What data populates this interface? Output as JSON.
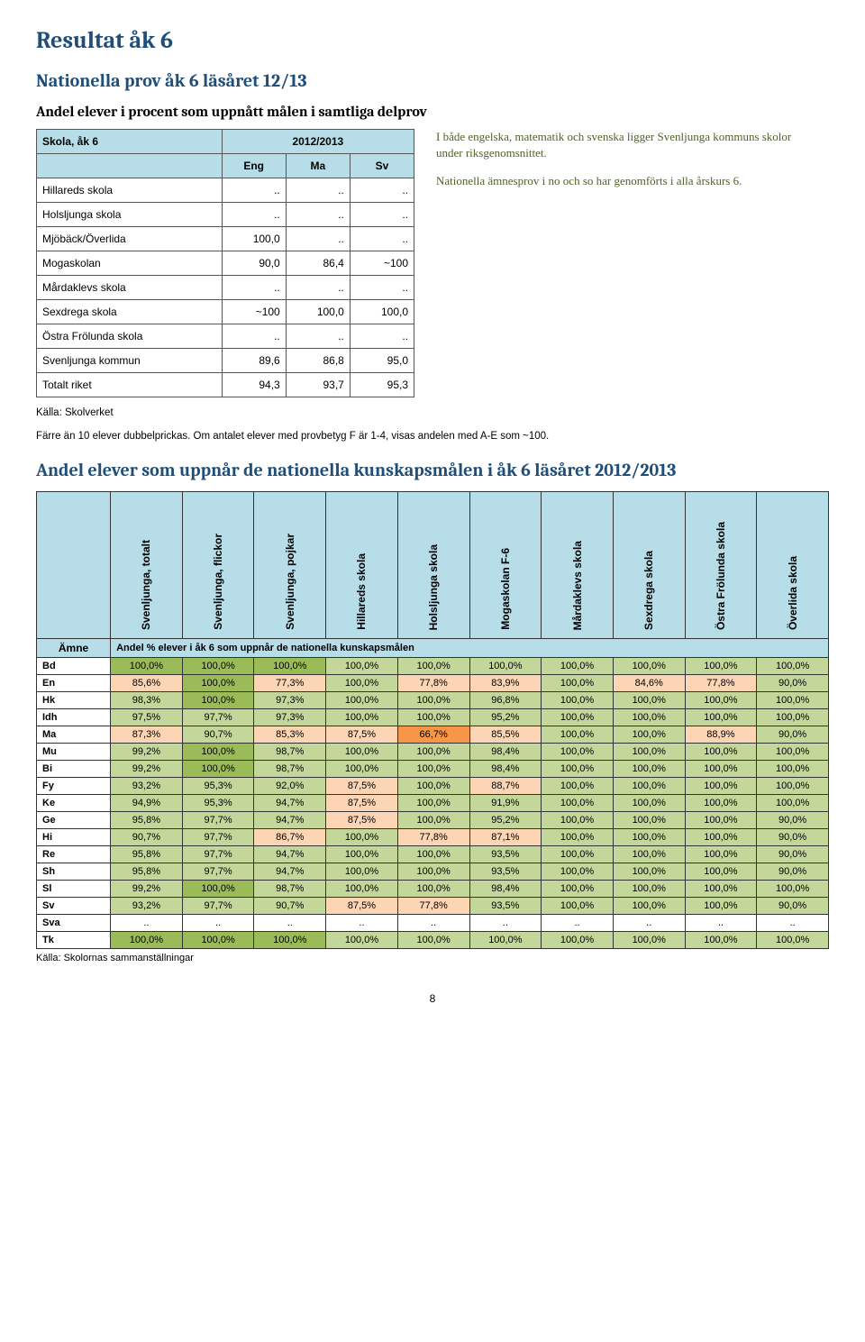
{
  "page_title": "Resultat åk 6",
  "section1_title": "Nationella prov åk 6 läsåret 12/13",
  "section1_subtitle": "Andel elever i procent som uppnått målen i samtliga delprov",
  "table1": {
    "header_left": "Skola, åk 6",
    "header_right": "2012/2013",
    "cols": [
      "Eng",
      "Ma",
      "Sv"
    ],
    "rows": [
      {
        "label": "Hillareds skola",
        "vals": [
          "..",
          "..",
          ".."
        ]
      },
      {
        "label": "Holsljunga skola",
        "vals": [
          "..",
          "..",
          ".."
        ]
      },
      {
        "label": "Mjöbäck/Överlida",
        "vals": [
          "100,0",
          "..",
          ".."
        ]
      },
      {
        "label": "Mogaskolan",
        "vals": [
          "90,0",
          "86,4",
          "~100"
        ]
      },
      {
        "label": "Mårdaklevs skola",
        "vals": [
          "..",
          "..",
          ".."
        ]
      },
      {
        "label": "Sexdrega skola",
        "vals": [
          "~100",
          "100,0",
          "100,0"
        ]
      },
      {
        "label": "Östra Frölunda skola",
        "vals": [
          "..",
          "..",
          ".."
        ]
      },
      {
        "label": "Svenljunga kommun",
        "vals": [
          "89,6",
          "86,8",
          "95,0"
        ]
      },
      {
        "label": "Totalt riket",
        "vals": [
          "94,3",
          "93,7",
          "95,3"
        ]
      }
    ]
  },
  "side_paragraphs": [
    "I både engelska, matematik och svenska ligger Svenljunga kommuns skolor under riksgenomsnittet.",
    "Nationella ämnesprov i no och so har genomförts i alla årskurs 6."
  ],
  "note_source": "Källa: Skolverket",
  "note_text": "Färre än 10 elever dubbelprickas. Om antalet elever med provbetyg F är 1-4, visas andelen med A-E som ~100.",
  "section2_title": "Andel elever som uppnår de nationella kunskapsmålen i åk 6 läsåret 2012/2013",
  "table2": {
    "amne_label": "Ämne",
    "caption": "Andel % elever i åk 6 som uppnår de nationella kunskapsmålen",
    "columns": [
      "Svenljunga, totalt",
      "Svenljunga, flickor",
      "Svenljunga, pojkar",
      "Hillareds skola",
      "Holsljunga skola",
      "Mogaskolan F-6",
      "Mårdaklevs skola",
      "Sexdrega skola",
      "Östra Frölunda skola",
      "Överlida skola"
    ],
    "cell_colors": {
      "green_light": "#c4d79b",
      "green_full": "#9bbb59",
      "orange_light": "#fcd5b4",
      "orange_dark": "#f79646",
      "plain": "#ffffff"
    },
    "rows": [
      {
        "subj": "Bd",
        "cells": [
          {
            "v": "100,0%",
            "c": "green_full"
          },
          {
            "v": "100,0%",
            "c": "green_full"
          },
          {
            "v": "100,0%",
            "c": "green_full"
          },
          {
            "v": "100,0%",
            "c": "green_light"
          },
          {
            "v": "100,0%",
            "c": "green_light"
          },
          {
            "v": "100,0%",
            "c": "green_light"
          },
          {
            "v": "100,0%",
            "c": "green_light"
          },
          {
            "v": "100,0%",
            "c": "green_light"
          },
          {
            "v": "100,0%",
            "c": "green_light"
          },
          {
            "v": "100,0%",
            "c": "green_light"
          }
        ]
      },
      {
        "subj": "En",
        "cells": [
          {
            "v": "85,6%",
            "c": "orange_light"
          },
          {
            "v": "100,0%",
            "c": "green_full"
          },
          {
            "v": "77,3%",
            "c": "orange_light"
          },
          {
            "v": "100,0%",
            "c": "green_light"
          },
          {
            "v": "77,8%",
            "c": "orange_light"
          },
          {
            "v": "83,9%",
            "c": "orange_light"
          },
          {
            "v": "100,0%",
            "c": "green_light"
          },
          {
            "v": "84,6%",
            "c": "orange_light"
          },
          {
            "v": "77,8%",
            "c": "orange_light"
          },
          {
            "v": "90,0%",
            "c": "green_light"
          }
        ]
      },
      {
        "subj": "Hk",
        "cells": [
          {
            "v": "98,3%",
            "c": "green_light"
          },
          {
            "v": "100,0%",
            "c": "green_full"
          },
          {
            "v": "97,3%",
            "c": "green_light"
          },
          {
            "v": "100,0%",
            "c": "green_light"
          },
          {
            "v": "100,0%",
            "c": "green_light"
          },
          {
            "v": "96,8%",
            "c": "green_light"
          },
          {
            "v": "100,0%",
            "c": "green_light"
          },
          {
            "v": "100,0%",
            "c": "green_light"
          },
          {
            "v": "100,0%",
            "c": "green_light"
          },
          {
            "v": "100,0%",
            "c": "green_light"
          }
        ]
      },
      {
        "subj": "Idh",
        "cells": [
          {
            "v": "97,5%",
            "c": "green_light"
          },
          {
            "v": "97,7%",
            "c": "green_light"
          },
          {
            "v": "97,3%",
            "c": "green_light"
          },
          {
            "v": "100,0%",
            "c": "green_light"
          },
          {
            "v": "100,0%",
            "c": "green_light"
          },
          {
            "v": "95,2%",
            "c": "green_light"
          },
          {
            "v": "100,0%",
            "c": "green_light"
          },
          {
            "v": "100,0%",
            "c": "green_light"
          },
          {
            "v": "100,0%",
            "c": "green_light"
          },
          {
            "v": "100,0%",
            "c": "green_light"
          }
        ]
      },
      {
        "subj": "Ma",
        "cells": [
          {
            "v": "87,3%",
            "c": "orange_light"
          },
          {
            "v": "90,7%",
            "c": "green_light"
          },
          {
            "v": "85,3%",
            "c": "orange_light"
          },
          {
            "v": "87,5%",
            "c": "orange_light"
          },
          {
            "v": "66,7%",
            "c": "orange_dark"
          },
          {
            "v": "85,5%",
            "c": "orange_light"
          },
          {
            "v": "100,0%",
            "c": "green_light"
          },
          {
            "v": "100,0%",
            "c": "green_light"
          },
          {
            "v": "88,9%",
            "c": "orange_light"
          },
          {
            "v": "90,0%",
            "c": "green_light"
          }
        ]
      },
      {
        "subj": "Mu",
        "cells": [
          {
            "v": "99,2%",
            "c": "green_light"
          },
          {
            "v": "100,0%",
            "c": "green_full"
          },
          {
            "v": "98,7%",
            "c": "green_light"
          },
          {
            "v": "100,0%",
            "c": "green_light"
          },
          {
            "v": "100,0%",
            "c": "green_light"
          },
          {
            "v": "98,4%",
            "c": "green_light"
          },
          {
            "v": "100,0%",
            "c": "green_light"
          },
          {
            "v": "100,0%",
            "c": "green_light"
          },
          {
            "v": "100,0%",
            "c": "green_light"
          },
          {
            "v": "100,0%",
            "c": "green_light"
          }
        ]
      },
      {
        "subj": "Bi",
        "cells": [
          {
            "v": "99,2%",
            "c": "green_light"
          },
          {
            "v": "100,0%",
            "c": "green_full"
          },
          {
            "v": "98,7%",
            "c": "green_light"
          },
          {
            "v": "100,0%",
            "c": "green_light"
          },
          {
            "v": "100,0%",
            "c": "green_light"
          },
          {
            "v": "98,4%",
            "c": "green_light"
          },
          {
            "v": "100,0%",
            "c": "green_light"
          },
          {
            "v": "100,0%",
            "c": "green_light"
          },
          {
            "v": "100,0%",
            "c": "green_light"
          },
          {
            "v": "100,0%",
            "c": "green_light"
          }
        ]
      },
      {
        "subj": "Fy",
        "cells": [
          {
            "v": "93,2%",
            "c": "green_light"
          },
          {
            "v": "95,3%",
            "c": "green_light"
          },
          {
            "v": "92,0%",
            "c": "green_light"
          },
          {
            "v": "87,5%",
            "c": "orange_light"
          },
          {
            "v": "100,0%",
            "c": "green_light"
          },
          {
            "v": "88,7%",
            "c": "orange_light"
          },
          {
            "v": "100,0%",
            "c": "green_light"
          },
          {
            "v": "100,0%",
            "c": "green_light"
          },
          {
            "v": "100,0%",
            "c": "green_light"
          },
          {
            "v": "100,0%",
            "c": "green_light"
          }
        ]
      },
      {
        "subj": "Ke",
        "cells": [
          {
            "v": "94,9%",
            "c": "green_light"
          },
          {
            "v": "95,3%",
            "c": "green_light"
          },
          {
            "v": "94,7%",
            "c": "green_light"
          },
          {
            "v": "87,5%",
            "c": "orange_light"
          },
          {
            "v": "100,0%",
            "c": "green_light"
          },
          {
            "v": "91,9%",
            "c": "green_light"
          },
          {
            "v": "100,0%",
            "c": "green_light"
          },
          {
            "v": "100,0%",
            "c": "green_light"
          },
          {
            "v": "100,0%",
            "c": "green_light"
          },
          {
            "v": "100,0%",
            "c": "green_light"
          }
        ]
      },
      {
        "subj": "Ge",
        "cells": [
          {
            "v": "95,8%",
            "c": "green_light"
          },
          {
            "v": "97,7%",
            "c": "green_light"
          },
          {
            "v": "94,7%",
            "c": "green_light"
          },
          {
            "v": "87,5%",
            "c": "orange_light"
          },
          {
            "v": "100,0%",
            "c": "green_light"
          },
          {
            "v": "95,2%",
            "c": "green_light"
          },
          {
            "v": "100,0%",
            "c": "green_light"
          },
          {
            "v": "100,0%",
            "c": "green_light"
          },
          {
            "v": "100,0%",
            "c": "green_light"
          },
          {
            "v": "90,0%",
            "c": "green_light"
          }
        ]
      },
      {
        "subj": "Hi",
        "cells": [
          {
            "v": "90,7%",
            "c": "green_light"
          },
          {
            "v": "97,7%",
            "c": "green_light"
          },
          {
            "v": "86,7%",
            "c": "orange_light"
          },
          {
            "v": "100,0%",
            "c": "green_light"
          },
          {
            "v": "77,8%",
            "c": "orange_light"
          },
          {
            "v": "87,1%",
            "c": "orange_light"
          },
          {
            "v": "100,0%",
            "c": "green_light"
          },
          {
            "v": "100,0%",
            "c": "green_light"
          },
          {
            "v": "100,0%",
            "c": "green_light"
          },
          {
            "v": "90,0%",
            "c": "green_light"
          }
        ]
      },
      {
        "subj": "Re",
        "cells": [
          {
            "v": "95,8%",
            "c": "green_light"
          },
          {
            "v": "97,7%",
            "c": "green_light"
          },
          {
            "v": "94,7%",
            "c": "green_light"
          },
          {
            "v": "100,0%",
            "c": "green_light"
          },
          {
            "v": "100,0%",
            "c": "green_light"
          },
          {
            "v": "93,5%",
            "c": "green_light"
          },
          {
            "v": "100,0%",
            "c": "green_light"
          },
          {
            "v": "100,0%",
            "c": "green_light"
          },
          {
            "v": "100,0%",
            "c": "green_light"
          },
          {
            "v": "90,0%",
            "c": "green_light"
          }
        ]
      },
      {
        "subj": "Sh",
        "cells": [
          {
            "v": "95,8%",
            "c": "green_light"
          },
          {
            "v": "97,7%",
            "c": "green_light"
          },
          {
            "v": "94,7%",
            "c": "green_light"
          },
          {
            "v": "100,0%",
            "c": "green_light"
          },
          {
            "v": "100,0%",
            "c": "green_light"
          },
          {
            "v": "93,5%",
            "c": "green_light"
          },
          {
            "v": "100,0%",
            "c": "green_light"
          },
          {
            "v": "100,0%",
            "c": "green_light"
          },
          {
            "v": "100,0%",
            "c": "green_light"
          },
          {
            "v": "90,0%",
            "c": "green_light"
          }
        ]
      },
      {
        "subj": "Sl",
        "cells": [
          {
            "v": "99,2%",
            "c": "green_light"
          },
          {
            "v": "100,0%",
            "c": "green_full"
          },
          {
            "v": "98,7%",
            "c": "green_light"
          },
          {
            "v": "100,0%",
            "c": "green_light"
          },
          {
            "v": "100,0%",
            "c": "green_light"
          },
          {
            "v": "98,4%",
            "c": "green_light"
          },
          {
            "v": "100,0%",
            "c": "green_light"
          },
          {
            "v": "100,0%",
            "c": "green_light"
          },
          {
            "v": "100,0%",
            "c": "green_light"
          },
          {
            "v": "100,0%",
            "c": "green_light"
          }
        ]
      },
      {
        "subj": "Sv",
        "cells": [
          {
            "v": "93,2%",
            "c": "green_light"
          },
          {
            "v": "97,7%",
            "c": "green_light"
          },
          {
            "v": "90,7%",
            "c": "green_light"
          },
          {
            "v": "87,5%",
            "c": "orange_light"
          },
          {
            "v": "77,8%",
            "c": "orange_light"
          },
          {
            "v": "93,5%",
            "c": "green_light"
          },
          {
            "v": "100,0%",
            "c": "green_light"
          },
          {
            "v": "100,0%",
            "c": "green_light"
          },
          {
            "v": "100,0%",
            "c": "green_light"
          },
          {
            "v": "90,0%",
            "c": "green_light"
          }
        ]
      },
      {
        "subj": "Sva",
        "cells": [
          {
            "v": "..",
            "c": "plain"
          },
          {
            "v": "..",
            "c": "plain"
          },
          {
            "v": "..",
            "c": "plain"
          },
          {
            "v": "..",
            "c": "plain"
          },
          {
            "v": "..",
            "c": "plain"
          },
          {
            "v": "..",
            "c": "plain"
          },
          {
            "v": "..",
            "c": "plain"
          },
          {
            "v": "..",
            "c": "plain"
          },
          {
            "v": "..",
            "c": "plain"
          },
          {
            "v": "..",
            "c": "plain"
          }
        ]
      },
      {
        "subj": "Tk",
        "cells": [
          {
            "v": "100,0%",
            "c": "green_full"
          },
          {
            "v": "100,0%",
            "c": "green_full"
          },
          {
            "v": "100,0%",
            "c": "green_full"
          },
          {
            "v": "100,0%",
            "c": "green_light"
          },
          {
            "v": "100,0%",
            "c": "green_light"
          },
          {
            "v": "100,0%",
            "c": "green_light"
          },
          {
            "v": "100,0%",
            "c": "green_light"
          },
          {
            "v": "100,0%",
            "c": "green_light"
          },
          {
            "v": "100,0%",
            "c": "green_light"
          },
          {
            "v": "100,0%",
            "c": "green_light"
          }
        ]
      }
    ]
  },
  "bottom_source": "Källa: Skolornas sammanställningar",
  "page_number": "8"
}
